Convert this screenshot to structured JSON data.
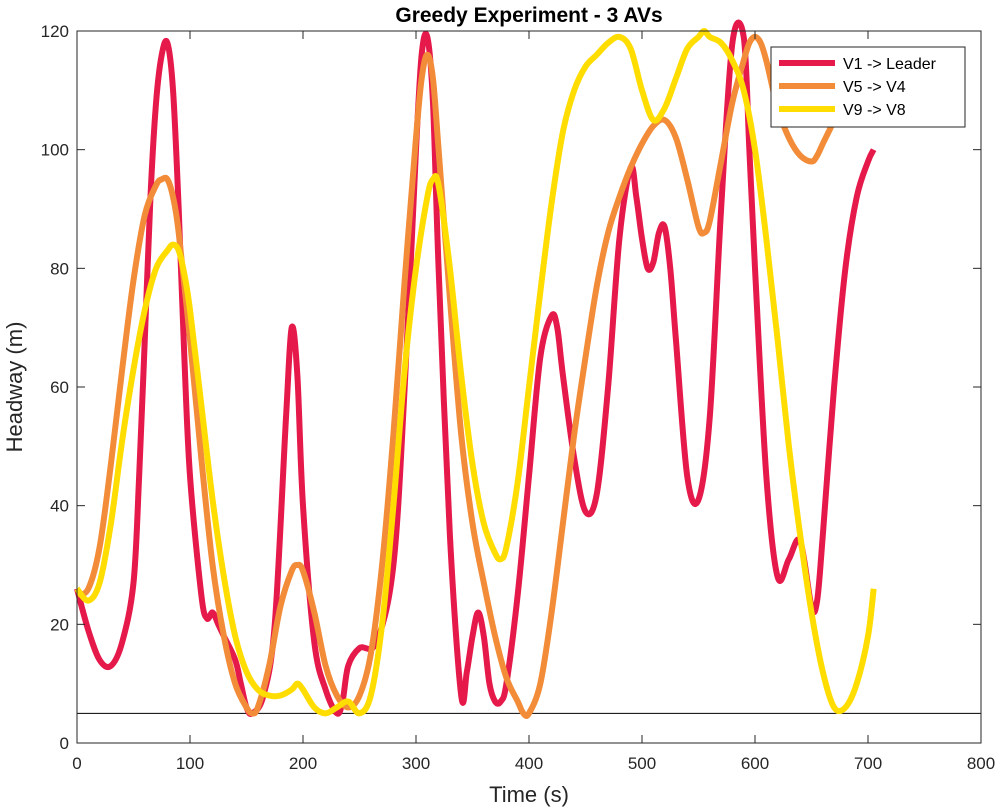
{
  "chart_data": {
    "type": "line",
    "title": "Greedy Experiment - 3 AVs",
    "xlabel": "Time (s)",
    "ylabel": "Headway (m)",
    "xlim": [
      0,
      800
    ],
    "ylim": [
      0,
      120
    ],
    "xticks": [
      0,
      100,
      200,
      300,
      400,
      500,
      600,
      700,
      800
    ],
    "yticks": [
      0,
      20,
      40,
      60,
      80,
      100,
      120
    ],
    "grid": false,
    "legend_position": "top-right",
    "reference_line": {
      "y": 5
    },
    "series": [
      {
        "name": "V1 -> Leader",
        "color": "#E6194B",
        "x": [
          0,
          10,
          20,
          30,
          40,
          50,
          55,
          60,
          65,
          70,
          75,
          80,
          85,
          90,
          95,
          100,
          110,
          115,
          120,
          125,
          130,
          140,
          145,
          150,
          155,
          165,
          175,
          185,
          190,
          195,
          200,
          210,
          220,
          230,
          235,
          240,
          250,
          265,
          280,
          290,
          300,
          305,
          310,
          315,
          320,
          330,
          340,
          345,
          350,
          355,
          360,
          365,
          370,
          375,
          380,
          390,
          400,
          410,
          420,
          425,
          430,
          440,
          450,
          460,
          470,
          480,
          490,
          495,
          500,
          505,
          510,
          515,
          520,
          525,
          530,
          540,
          550,
          560,
          570,
          580,
          590,
          595,
          600,
          610,
          620,
          630,
          640,
          650,
          655,
          660,
          670,
          680,
          690,
          700,
          705
        ],
        "y": [
          26,
          19,
          14,
          13,
          17,
          27,
          45,
          68,
          92,
          108,
          116,
          118,
          110,
          90,
          65,
          45,
          25,
          21,
          22,
          20,
          18,
          14,
          10,
          6,
          5,
          8,
          20,
          55,
          70,
          62,
          40,
          17,
          9,
          5,
          7,
          13,
          16,
          17,
          30,
          60,
          100,
          116,
          119,
          108,
          80,
          35,
          8,
          12,
          18,
          22,
          18,
          10,
          7,
          7,
          10,
          25,
          45,
          65,
          72,
          70,
          62,
          48,
          39,
          42,
          60,
          85,
          97,
          92,
          85,
          80,
          81,
          86,
          87,
          80,
          68,
          45,
          41,
          55,
          90,
          118,
          119,
          100,
          80,
          45,
          28,
          31,
          34,
          23,
          24,
          35,
          60,
          80,
          92,
          98,
          100
        ]
      },
      {
        "name": "V5 -> V4",
        "color": "#F28C38",
        "x": [
          0,
          10,
          20,
          30,
          40,
          50,
          60,
          70,
          75,
          80,
          85,
          90,
          100,
          110,
          120,
          130,
          140,
          150,
          155,
          160,
          170,
          180,
          190,
          195,
          200,
          210,
          220,
          230,
          240,
          250,
          260,
          270,
          280,
          290,
          300,
          305,
          310,
          315,
          320,
          330,
          340,
          350,
          360,
          370,
          380,
          390,
          395,
          400,
          410,
          420,
          430,
          440,
          450,
          460,
          470,
          480,
          490,
          500,
          510,
          520,
          530,
          540,
          550,
          555,
          560,
          570,
          580,
          590,
          595,
          600,
          605,
          610,
          620,
          630,
          640,
          650,
          655,
          660,
          670,
          680,
          690,
          700,
          705
        ],
        "y": [
          25,
          26,
          33,
          47,
          63,
          78,
          89,
          94,
          95,
          95,
          92,
          86,
          68,
          48,
          30,
          18,
          10,
          6,
          5,
          6,
          13,
          23,
          29,
          30,
          29,
          22,
          13,
          8,
          6,
          8,
          15,
          30,
          52,
          78,
          102,
          112,
          116,
          112,
          100,
          75,
          52,
          37,
          27,
          18,
          11,
          7,
          5,
          5,
          10,
          22,
          37,
          52,
          65,
          77,
          86,
          92,
          97,
          101,
          104,
          105,
          102,
          95,
          87,
          86,
          88,
          98,
          108,
          115,
          118,
          119,
          118,
          115,
          107,
          102,
          99,
          98,
          99,
          101,
          105,
          110,
          114,
          116,
          117
        ]
      },
      {
        "name": "V9 -> V8",
        "color": "#FFDD00",
        "x": [
          0,
          10,
          20,
          30,
          40,
          50,
          60,
          70,
          80,
          85,
          90,
          95,
          100,
          110,
          120,
          130,
          140,
          150,
          160,
          170,
          180,
          190,
          195,
          200,
          210,
          220,
          230,
          240,
          250,
          260,
          270,
          280,
          290,
          300,
          310,
          315,
          320,
          330,
          340,
          350,
          360,
          370,
          375,
          380,
          390,
          400,
          410,
          420,
          430,
          440,
          450,
          460,
          470,
          480,
          490,
          500,
          510,
          520,
          530,
          540,
          550,
          555,
          560,
          570,
          580,
          590,
          600,
          610,
          620,
          630,
          640,
          650,
          660,
          670,
          680,
          690,
          700,
          705
        ],
        "y": [
          26,
          24,
          27,
          37,
          51,
          63,
          73,
          80,
          83,
          84,
          83,
          79,
          73,
          57,
          41,
          28,
          18,
          12,
          9,
          8,
          8,
          9,
          10,
          9,
          6,
          5,
          6,
          7,
          5,
          8,
          20,
          40,
          63,
          80,
          92,
          95,
          94,
          80,
          62,
          47,
          37,
          32,
          31,
          33,
          44,
          60,
          76,
          91,
          103,
          110,
          114,
          116,
          118,
          119,
          117,
          110,
          105,
          107,
          112,
          117,
          119,
          120,
          119,
          118,
          115,
          110,
          100,
          85,
          68,
          50,
          35,
          22,
          12,
          6,
          6,
          10,
          18,
          26
        ]
      }
    ]
  }
}
